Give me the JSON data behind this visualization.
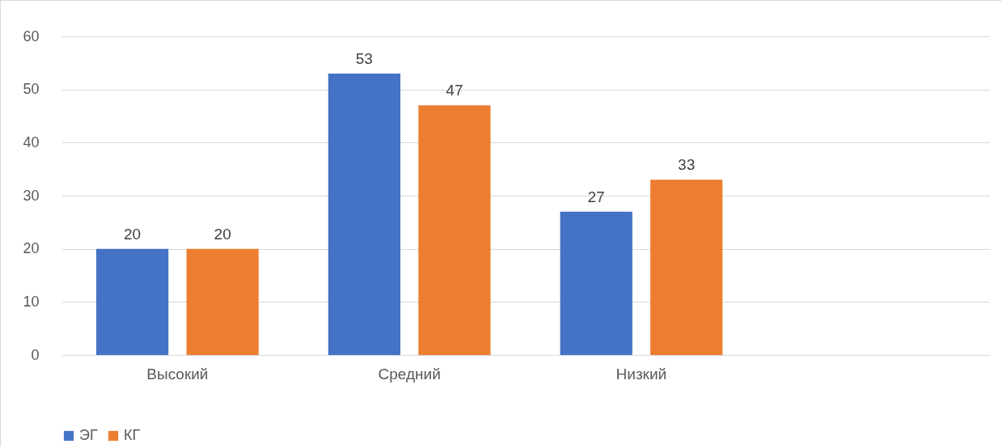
{
  "chart_data": {
    "type": "bar",
    "categories": [
      "Высокий",
      "Средний",
      "Низкий",
      null
    ],
    "series": [
      {
        "name": "ЭГ",
        "color": "#4472c4",
        "values": [
          20,
          53,
          27,
          null
        ]
      },
      {
        "name": "КГ",
        "color": "#ed7d31",
        "values": [
          20,
          47,
          33,
          null
        ]
      }
    ],
    "ylim": [
      0,
      60
    ],
    "yticks": [
      0,
      10,
      20,
      30,
      40,
      50,
      60
    ],
    "grid": "y",
    "legend": "bottom",
    "data_labels": true
  }
}
